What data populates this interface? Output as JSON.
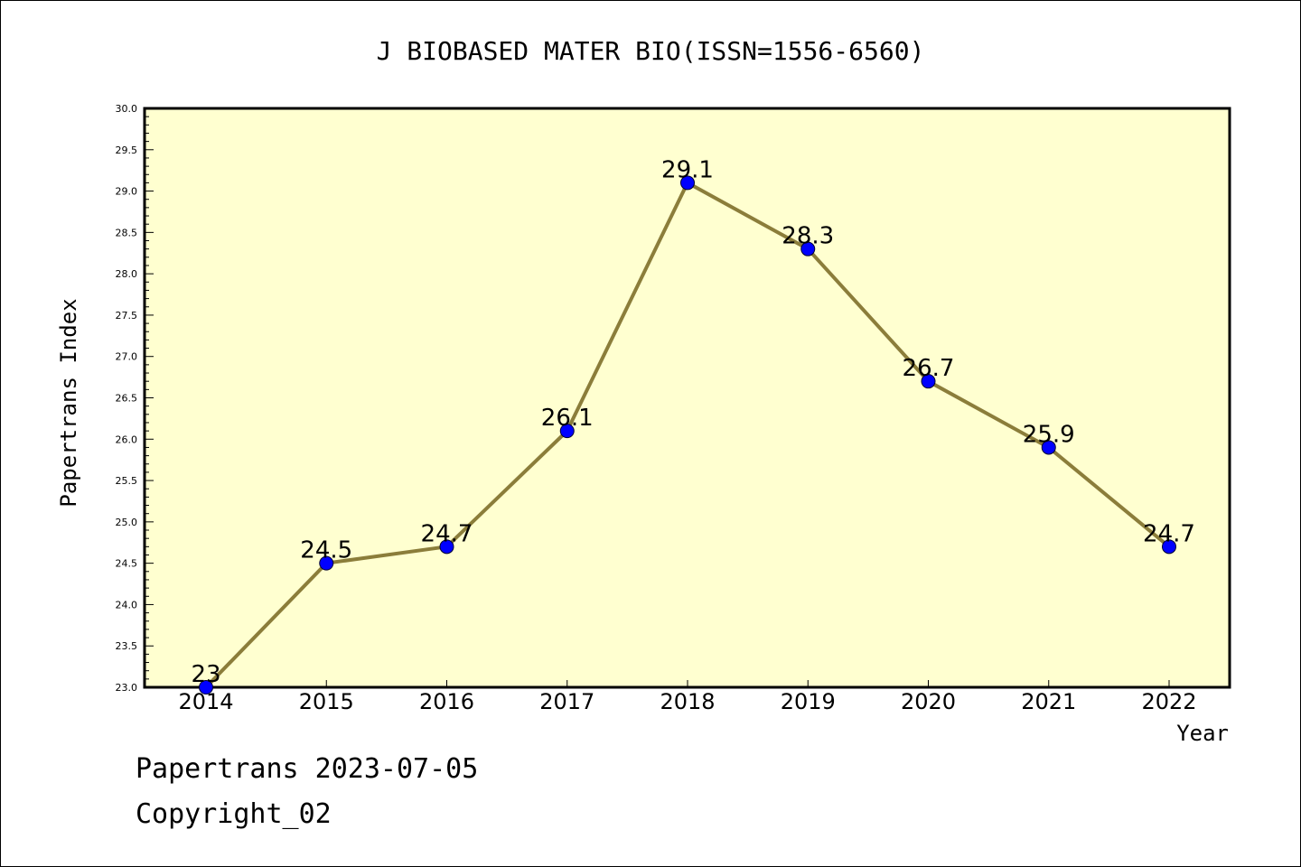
{
  "title": "J BIOBASED MATER BIO(ISSN=1556-6560)",
  "footer": {
    "line1": "Papertrans 2023-07-05",
    "line2": "Copyright_02"
  },
  "colors": {
    "plot_bg": "#ffffd0",
    "line": "#8b7d3a",
    "marker": "#0000ff",
    "axis": "#000000"
  },
  "chart_data": {
    "type": "line",
    "title": "J BIOBASED MATER BIO(ISSN=1556-6560)",
    "xlabel": "Year",
    "ylabel": "Papertrans Index",
    "categories": [
      "2014",
      "2015",
      "2016",
      "2017",
      "2018",
      "2019",
      "2020",
      "2021",
      "2022"
    ],
    "values": [
      23,
      24.5,
      24.7,
      26.1,
      29.1,
      28.3,
      26.7,
      25.9,
      24.7
    ],
    "data_labels": [
      "23",
      "24.5",
      "24.7",
      "26.1",
      "29.1",
      "28.3",
      "26.7",
      "25.9",
      "24.7"
    ],
    "yticks": [
      "23.0",
      "23.5",
      "24.0",
      "24.5",
      "25.0",
      "25.5",
      "26.0",
      "26.5",
      "27.0",
      "27.5",
      "28.0",
      "28.5",
      "29.0",
      "29.5",
      "30.0"
    ],
    "ylim": [
      23,
      30
    ],
    "grid": false,
    "legend": "none"
  }
}
